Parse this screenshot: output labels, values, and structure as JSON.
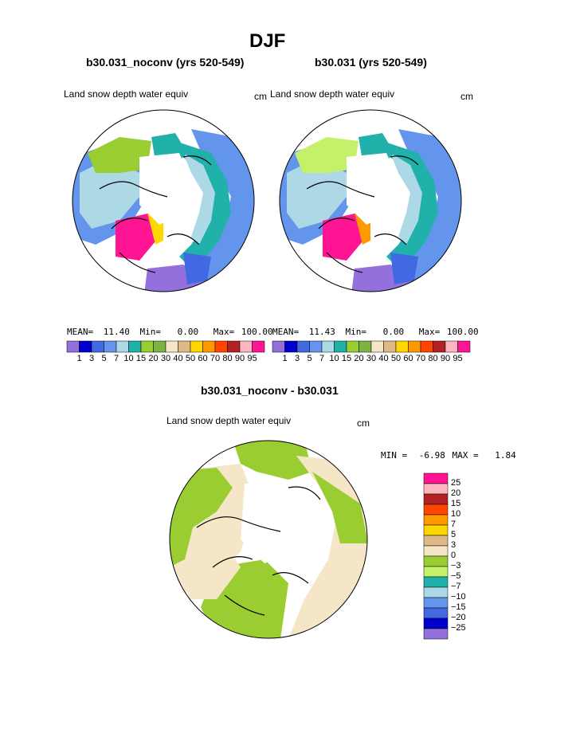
{
  "title": "DJF",
  "panels": [
    {
      "case_label": "b30.031_noconv (yrs 520-549)",
      "field_label": "Land snow depth water equiv",
      "units": "cm",
      "stats": {
        "mean_label": "MEAN=",
        "mean": "11.40",
        "min_label": "Min=",
        "min": "0.00",
        "max_label": "Max=",
        "max": "100.00"
      }
    },
    {
      "case_label": "b30.031 (yrs 520-549)",
      "field_label": "Land snow depth water equiv",
      "units": "cm",
      "stats": {
        "mean_label": "MEAN=",
        "mean": "11.43",
        "min_label": "Min=",
        "min": "0.00",
        "max_label": "Max=",
        "max": "100.00"
      }
    },
    {
      "case_label": "b30.031_noconv - b30.031",
      "field_label": "Land snow depth water equiv",
      "units": "cm",
      "stats": {
        "min_label": "MIN =",
        "min": "-6.98",
        "max_label": "MAX =",
        "max": "1.84"
      }
    }
  ],
  "abs_colorbar": {
    "colors": [
      "#9370db",
      "#0000cd",
      "#4169e1",
      "#6495ed",
      "#add8e6",
      "#20b2aa",
      "#9acd32",
      "#7cb342",
      "#f5e6c8",
      "#deb887",
      "#ffd700",
      "#ff9900",
      "#ff4500",
      "#b22222",
      "#ffb6c1",
      "#ff1493"
    ],
    "labels": [
      "1",
      "3",
      "5",
      "7",
      "10",
      "15",
      "20",
      "30",
      "40",
      "50",
      "60",
      "70",
      "80",
      "90",
      "95"
    ]
  },
  "diff_colorbar": {
    "colors": [
      "#ff1493",
      "#ffb6c1",
      "#b22222",
      "#ff4500",
      "#ff9900",
      "#ffd700",
      "#deb887",
      "#f5e6c8",
      "#9acd32",
      "#c5f06a",
      "#20b2aa",
      "#add8e6",
      "#6495ed",
      "#4169e1",
      "#0000cd",
      "#9370db"
    ],
    "labels": [
      "25",
      "20",
      "15",
      "10",
      "7",
      "5",
      "3",
      "0",
      "−3",
      "−5",
      "−7",
      "−10",
      "−15",
      "−20",
      "−25"
    ]
  }
}
